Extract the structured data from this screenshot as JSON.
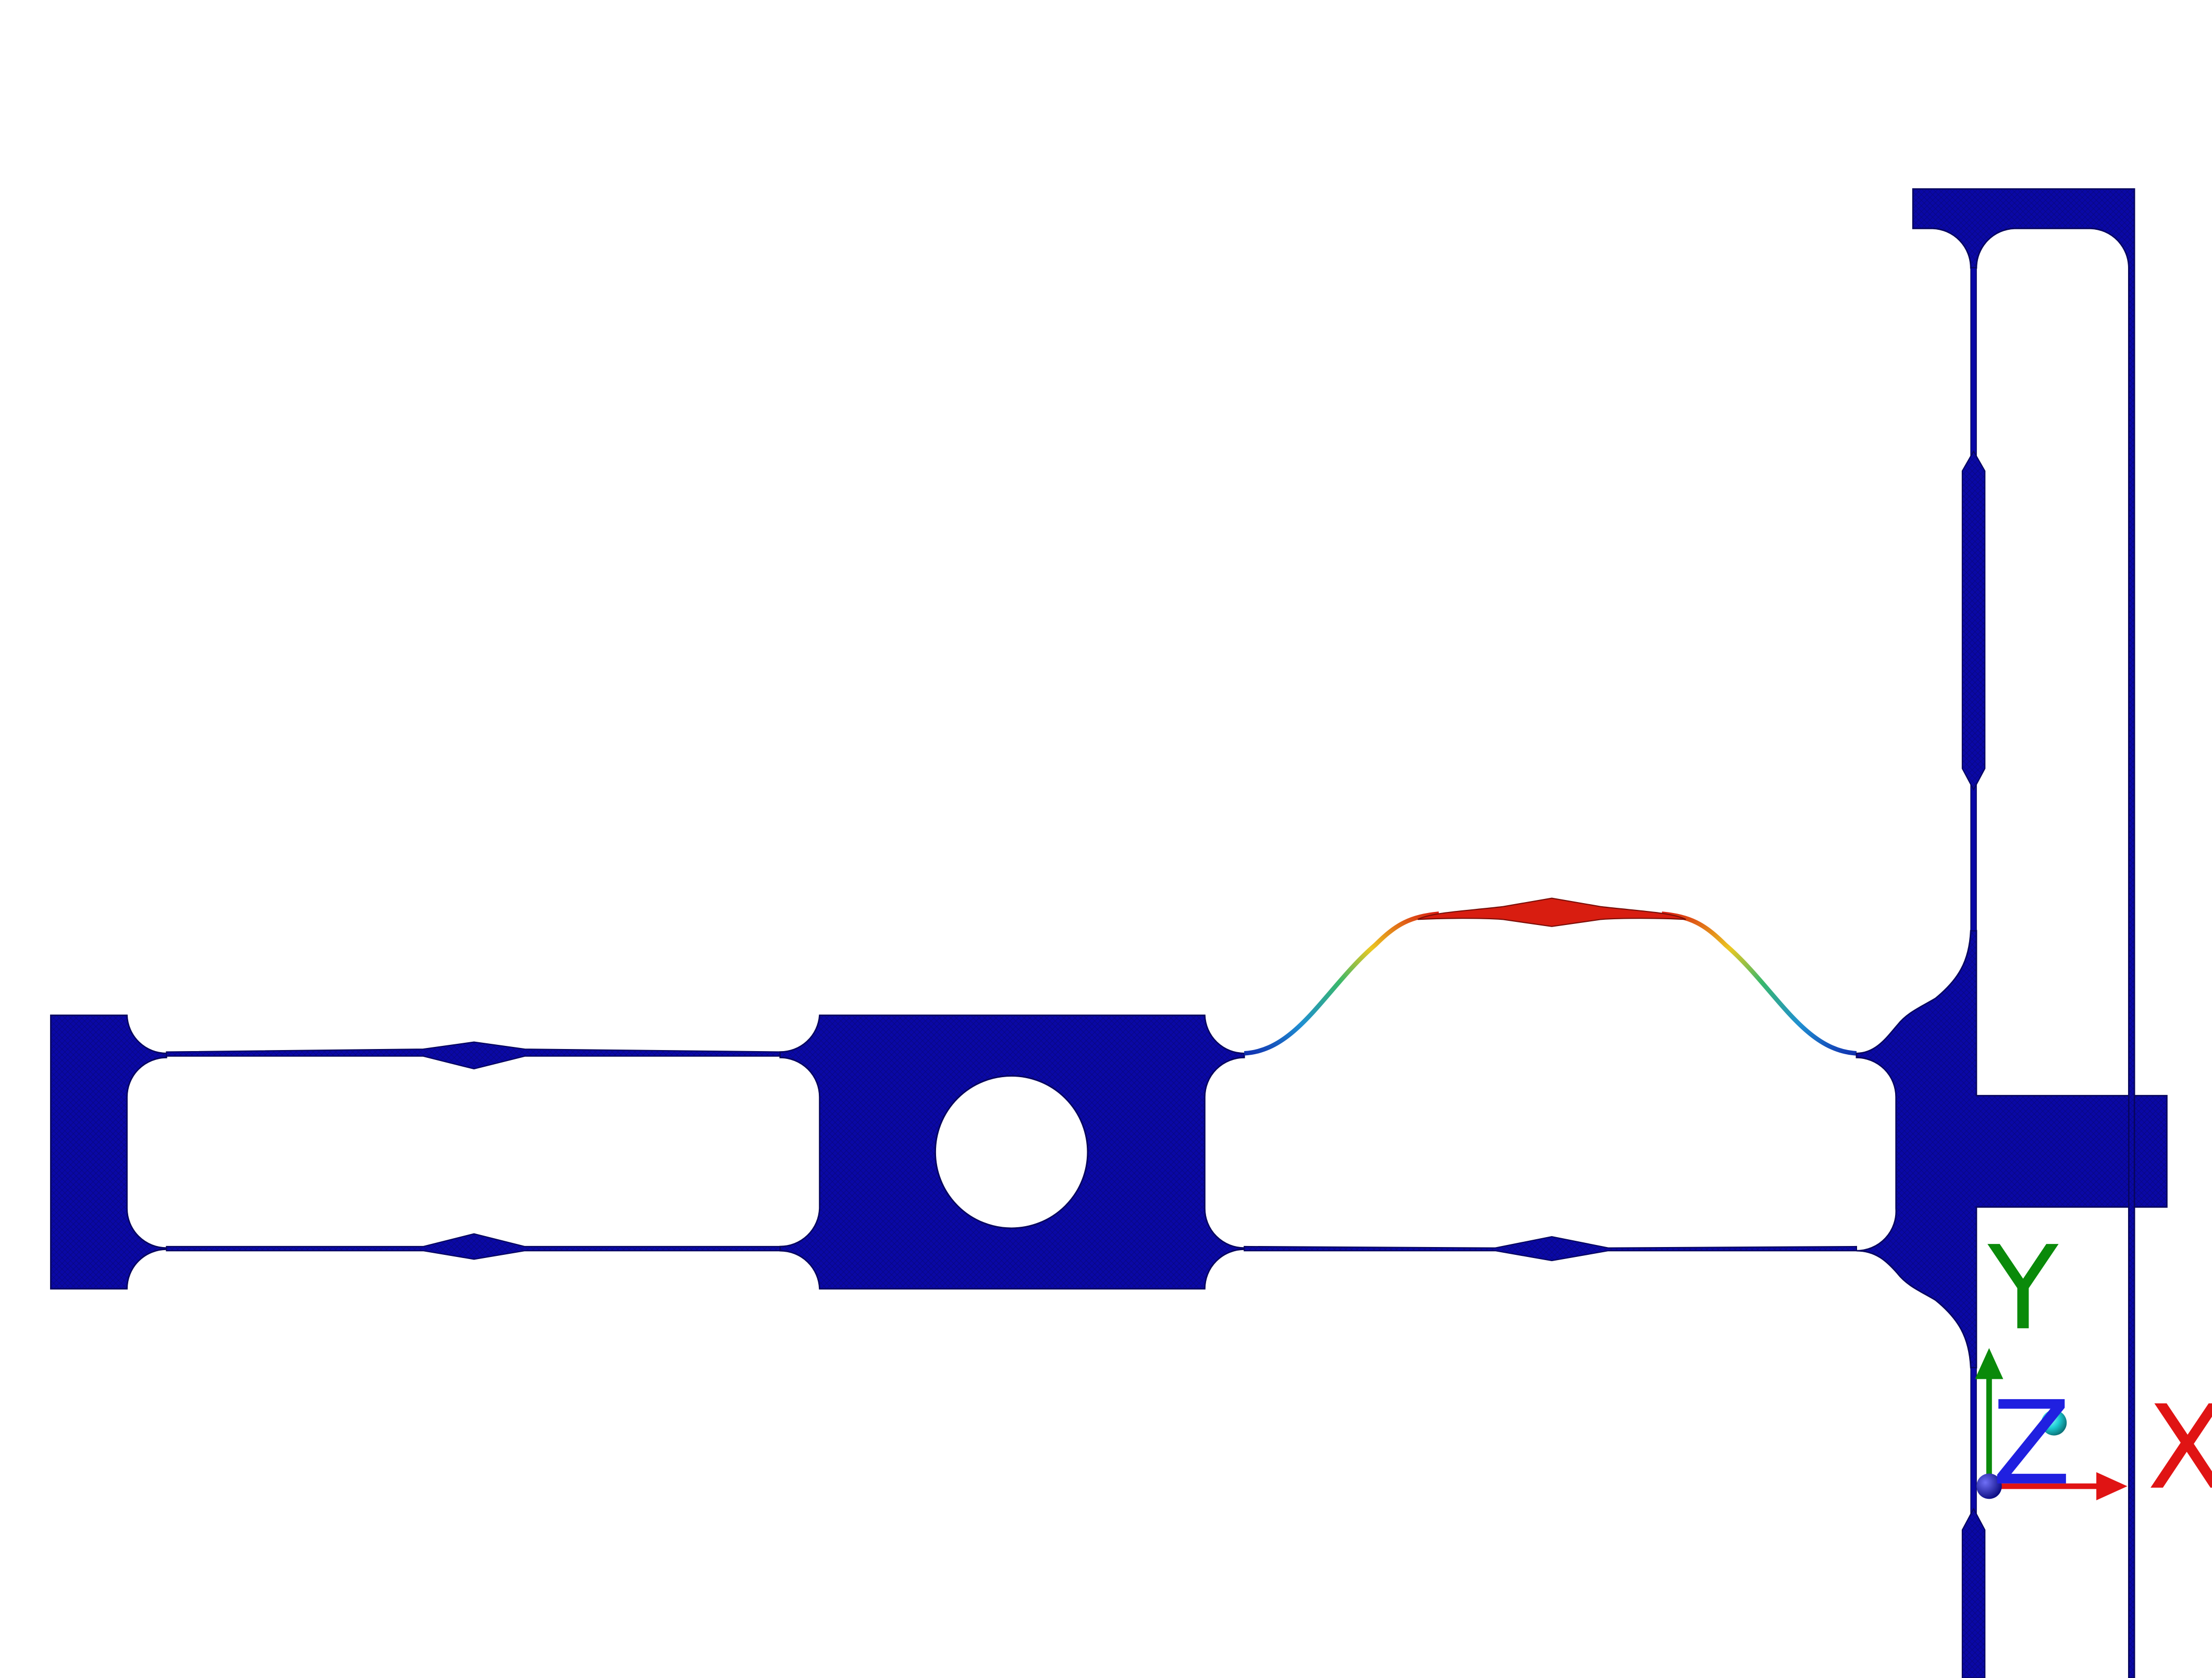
{
  "colors": {
    "background": "#ffffff",
    "mesh_body": "#0a08a6",
    "edge": "#07065e",
    "deform_high": "#d81d10",
    "deform_mid": "#ebc722",
    "deform_low": "#1f8fd1",
    "axis_x": "#e01414",
    "axis_y": "#0a8a0a",
    "axis_z": "#2020e0",
    "origin_marker": "#1ecfd6"
  },
  "triad": {
    "x_label": "X",
    "y_label": "Y",
    "z_label": "Z"
  }
}
